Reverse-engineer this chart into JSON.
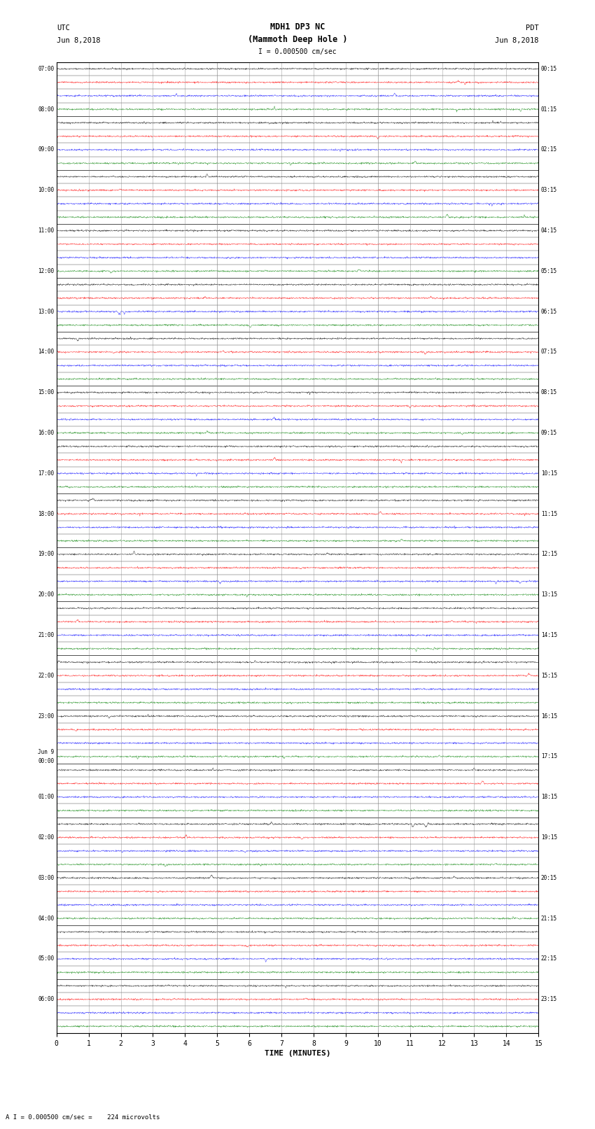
{
  "title_line1": "MDH1 DP3 NC",
  "title_line2": "(Mammoth Deep Hole )",
  "scale_label": "I = 0.000500 cm/sec",
  "utc_label_1": "UTC",
  "utc_label_2": "Jun 8,2018",
  "pdt_label_1": "PDT",
  "pdt_label_2": "Jun 8,2018",
  "bottom_label": "A I = 0.000500 cm/sec =    224 microvolts",
  "xlabel": "TIME (MINUTES)",
  "left_times": [
    "07:00",
    "",
    "",
    "08:00",
    "",
    "",
    "09:00",
    "",
    "",
    "10:00",
    "",
    "",
    "11:00",
    "",
    "",
    "12:00",
    "",
    "",
    "13:00",
    "",
    "",
    "14:00",
    "",
    "",
    "15:00",
    "",
    "",
    "16:00",
    "",
    "",
    "17:00",
    "",
    "",
    "18:00",
    "",
    "",
    "19:00",
    "",
    "",
    "20:00",
    "",
    "",
    "21:00",
    "",
    "",
    "22:00",
    "",
    "",
    "23:00",
    "",
    "",
    "Jun 9\n00:00",
    "",
    "",
    "01:00",
    "",
    "",
    "02:00",
    "",
    "",
    "03:00",
    "",
    "",
    "04:00",
    "",
    "",
    "05:00",
    "",
    "",
    "06:00",
    "",
    ""
  ],
  "right_times": [
    "00:15",
    "",
    "",
    "01:15",
    "",
    "",
    "02:15",
    "",
    "",
    "03:15",
    "",
    "",
    "04:15",
    "",
    "",
    "05:15",
    "",
    "",
    "06:15",
    "",
    "",
    "07:15",
    "",
    "",
    "08:15",
    "",
    "",
    "09:15",
    "",
    "",
    "10:15",
    "",
    "",
    "11:15",
    "",
    "",
    "12:15",
    "",
    "",
    "13:15",
    "",
    "",
    "14:15",
    "",
    "",
    "15:15",
    "",
    "",
    "16:15",
    "",
    "",
    "17:15",
    "",
    "",
    "18:15",
    "",
    "",
    "19:15",
    "",
    "",
    "20:15",
    "",
    "",
    "21:15",
    "",
    "",
    "22:15",
    "",
    "",
    "23:15",
    "",
    ""
  ],
  "num_rows": 72,
  "minutes_per_row": 15,
  "x_ticks": [
    0,
    1,
    2,
    3,
    4,
    5,
    6,
    7,
    8,
    9,
    10,
    11,
    12,
    13,
    14,
    15
  ],
  "bg_color": "#ffffff",
  "colors": [
    "#000000",
    "#ff0000",
    "#0000ff",
    "#008000"
  ],
  "noise_amplitude": 0.03,
  "figsize": [
    8.5,
    16.13
  ]
}
